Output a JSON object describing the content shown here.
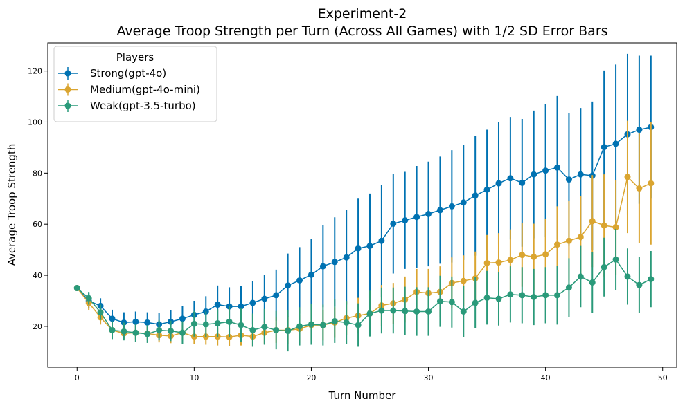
{
  "chart_data": {
    "type": "line",
    "title": "Experiment-2",
    "subtitle": "Average Troop Strength per Turn (Across All Games) with 1/2 SD Error Bars",
    "xlabel": "Turn Number",
    "ylabel": "Average Troop Strength",
    "xlim": [
      -2.5,
      51.2
    ],
    "ylim": [
      4,
      131
    ],
    "xticks": [
      0,
      10,
      20,
      30,
      40,
      50
    ],
    "yticks": [
      20,
      40,
      60,
      80,
      100,
      120
    ],
    "grid": false,
    "legend": {
      "title": "Players",
      "placement": "top-left"
    },
    "x": [
      0,
      1,
      2,
      3,
      4,
      5,
      6,
      7,
      8,
      9,
      10,
      11,
      12,
      13,
      14,
      15,
      16,
      17,
      18,
      19,
      20,
      21,
      22,
      23,
      24,
      25,
      26,
      27,
      28,
      29,
      30,
      31,
      32,
      33,
      34,
      35,
      36,
      37,
      38,
      39,
      40,
      41,
      42,
      43,
      44,
      45,
      46,
      47,
      48,
      49
    ],
    "series": [
      {
        "name": "Strong(gpt-4o)",
        "color": "#0072B2",
        "values": [
          35,
          30,
          28,
          23,
          21.5,
          21.8,
          21.5,
          20.8,
          21.8,
          23,
          24.5,
          25.8,
          28.5,
          27.8,
          27.8,
          29.2,
          30.8,
          32.2,
          36,
          38,
          40.2,
          43.5,
          45.2,
          47,
          50.5,
          51.5,
          53.5,
          60.2,
          61.5,
          62.8,
          64,
          65.5,
          67,
          68.5,
          71.2,
          73.5,
          76,
          78,
          76.2,
          79.5,
          81,
          82.2,
          77.5,
          79.5,
          79,
          90.2,
          91.5,
          95.2,
          97,
          98
        ],
        "err": [
          0,
          3,
          3,
          3.5,
          4,
          4,
          4,
          4.5,
          4.5,
          5,
          5.5,
          6,
          7.5,
          7.5,
          8,
          8.5,
          9.5,
          10,
          12.5,
          13,
          14,
          16,
          17.5,
          18.5,
          19.5,
          20.5,
          22,
          19.5,
          19,
          20,
          20.5,
          21,
          22,
          22.5,
          23.5,
          23.5,
          24,
          24,
          25,
          25,
          26,
          28,
          26,
          26,
          29,
          30,
          31,
          31.5,
          29,
          28
        ]
      },
      {
        "name": "Medium(gpt-4o-mini)",
        "color": "#DAA530",
        "values": [
          35,
          29.2,
          23.5,
          18.5,
          17.2,
          17.5,
          17.2,
          16.5,
          16.2,
          17.5,
          16,
          16,
          16,
          15.8,
          16.5,
          16,
          17.5,
          18.5,
          18.5,
          19,
          20.5,
          20.5,
          21.5,
          23.2,
          24.2,
          25,
          28.2,
          29,
          30.5,
          33.5,
          33,
          33.5,
          37,
          37.8,
          38.8,
          44.8,
          45,
          46,
          48,
          47.2,
          48.2,
          52,
          53.5,
          55,
          61.2,
          59.5,
          58.8,
          78.5,
          74,
          76
        ],
        "err": [
          0,
          3,
          2.8,
          2,
          2,
          2.5,
          2.5,
          2.8,
          2.8,
          3,
          3,
          3.2,
          3.5,
          3.5,
          4,
          4,
          4.5,
          5,
          5.5,
          5.5,
          6,
          6,
          6,
          6.5,
          7,
          7,
          8,
          8,
          9,
          9,
          9.5,
          10,
          10,
          10,
          10.5,
          11,
          11.5,
          12,
          12.5,
          13,
          14,
          15,
          15.5,
          16,
          18,
          20,
          18.5,
          22,
          21.5,
          24
        ]
      },
      {
        "name": "Weak(gpt-3.5-turbo)",
        "color": "#2A9A7A",
        "values": [
          35,
          31,
          25.5,
          18.5,
          18,
          17.5,
          17,
          18.5,
          18.2,
          17.5,
          21,
          20.8,
          21.2,
          21.8,
          20.5,
          18.5,
          19.8,
          18.5,
          18.2,
          20,
          20.8,
          20.5,
          22,
          21.5,
          20.5,
          25,
          26.2,
          26.2,
          26,
          25.8,
          25.8,
          29.8,
          29.5,
          25.8,
          29.2,
          31.2,
          30.8,
          32.5,
          32.2,
          31.5,
          32.2,
          32.2,
          35.2,
          39.5,
          37.2,
          43.2,
          46.2,
          39.5,
          36.2,
          38.5
        ],
        "err": [
          0,
          2.5,
          3,
          3.5,
          3.5,
          3.5,
          3.5,
          4,
          4,
          4.5,
          5,
          5,
          5.5,
          6,
          6.5,
          6.5,
          7,
          7.5,
          8,
          7.5,
          8,
          8,
          8.5,
          8.5,
          8.5,
          9,
          9,
          9,
          9.5,
          9.5,
          9.5,
          10,
          10,
          10,
          10,
          10.5,
          10.5,
          11,
          11,
          11,
          11,
          11.5,
          11.5,
          12,
          12,
          11.5,
          12,
          11,
          11,
          11
        ]
      }
    ]
  }
}
